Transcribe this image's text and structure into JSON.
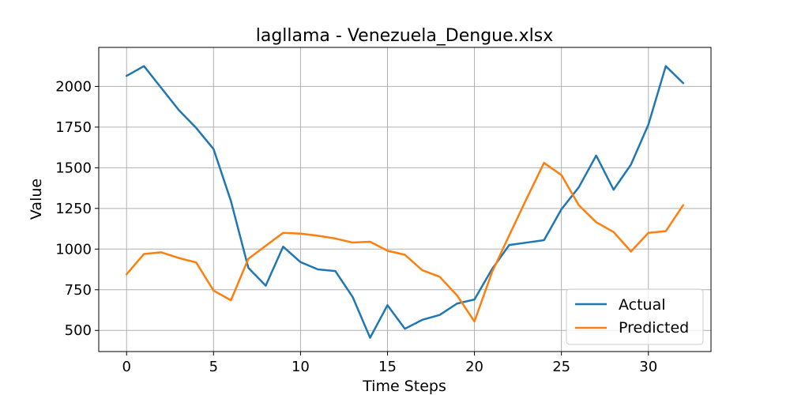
{
  "chart_data": {
    "type": "line",
    "title": "lagllama - Venezuela_Dengue.xlsx",
    "xlabel": "Time Steps",
    "ylabel": "Value",
    "xlim": [
      -1.6,
      33.6
    ],
    "ylim": [
      370,
      2240
    ],
    "xticks": [
      0,
      5,
      10,
      15,
      20,
      25,
      30
    ],
    "yticks": [
      500,
      750,
      1000,
      1250,
      1500,
      1750,
      2000
    ],
    "grid": true,
    "legend_position": "bottom-right",
    "x": [
      0,
      1,
      2,
      3,
      4,
      5,
      6,
      7,
      8,
      9,
      10,
      11,
      12,
      13,
      14,
      15,
      16,
      17,
      18,
      19,
      20,
      21,
      22,
      23,
      24,
      25,
      26,
      27,
      28,
      29,
      30,
      31,
      32
    ],
    "series": [
      {
        "name": "Actual",
        "color": "#1f77b4",
        "values": [
          2065,
          2125,
          1990,
          1855,
          1745,
          1615,
          1295,
          885,
          775,
          1015,
          920,
          875,
          865,
          705,
          455,
          655,
          510,
          565,
          595,
          665,
          690,
          875,
          1025,
          1040,
          1055,
          1245,
          1380,
          1575,
          1365,
          1520,
          1765,
          2125,
          2020
        ]
      },
      {
        "name": "Predicted",
        "color": "#ff7f0e",
        "values": [
          845,
          970,
          980,
          945,
          918,
          745,
          685,
          940,
          1020,
          1100,
          1095,
          1082,
          1065,
          1040,
          1045,
          990,
          965,
          870,
          830,
          715,
          555,
          855,
          1085,
          1310,
          1530,
          1455,
          1270,
          1165,
          1105,
          985,
          1100,
          1110,
          1270
        ]
      }
    ]
  }
}
